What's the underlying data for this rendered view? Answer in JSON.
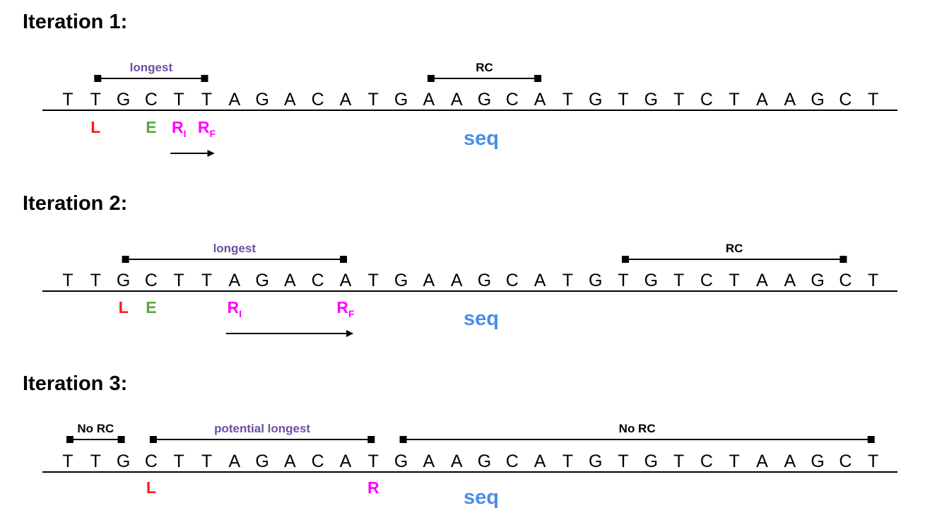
{
  "colors": {
    "base": "#000000",
    "longest": "#6c4fa3",
    "L": "#ff1a1a",
    "E": "#5aa83c",
    "R": "#ff00ff",
    "seq": "#4a8ee8"
  },
  "sequence": [
    "T",
    "T",
    "G",
    "C",
    "T",
    "T",
    "A",
    "G",
    "A",
    "C",
    "A",
    "T",
    "G",
    "A",
    "A",
    "G",
    "C",
    "A",
    "T",
    "G",
    "T",
    "G",
    "T",
    "C",
    "T",
    "A",
    "A",
    "G",
    "C",
    "T"
  ],
  "seq_label": "seq",
  "iterations": [
    {
      "title": "Iteration 1:",
      "spans": [
        {
          "label": "longest",
          "color": "longest",
          "start": 1,
          "end": 5
        },
        {
          "label": "RC",
          "color": "base",
          "start": 13,
          "end": 17
        }
      ],
      "markers": [
        {
          "text": "L",
          "sub": "",
          "color": "L",
          "pos": 1
        },
        {
          "text": "E",
          "sub": "",
          "color": "E",
          "pos": 3
        },
        {
          "text": "R",
          "sub": "I",
          "color": "R",
          "pos": 4
        },
        {
          "text": "R",
          "sub": "F",
          "color": "R",
          "pos": 5
        }
      ],
      "arrow": {
        "from": 4,
        "to": 5
      }
    },
    {
      "title": "Iteration 2:",
      "spans": [
        {
          "label": "longest",
          "color": "longest",
          "start": 2,
          "end": 10
        },
        {
          "label": "RC",
          "color": "base",
          "start": 20,
          "end": 28
        }
      ],
      "markers": [
        {
          "text": "L",
          "sub": "",
          "color": "L",
          "pos": 2
        },
        {
          "text": "E",
          "sub": "",
          "color": "E",
          "pos": 3
        },
        {
          "text": "R",
          "sub": "I",
          "color": "R",
          "pos": 6
        },
        {
          "text": "R",
          "sub": "F",
          "color": "R",
          "pos": 10
        }
      ],
      "arrow": {
        "from": 6,
        "to": 10
      }
    },
    {
      "title": "Iteration 3:",
      "spans": [
        {
          "label": "No RC",
          "color": "base",
          "start": 0,
          "end": 2
        },
        {
          "label": "potential longest",
          "color": "longest",
          "start": 3,
          "end": 11
        },
        {
          "label": "No RC",
          "color": "base",
          "start": 12,
          "end": 29
        }
      ],
      "markers": [
        {
          "text": "L",
          "sub": "",
          "color": "L",
          "pos": 3
        },
        {
          "text": "R",
          "sub": "",
          "color": "R",
          "pos": 11
        }
      ],
      "arrow": null
    }
  ]
}
